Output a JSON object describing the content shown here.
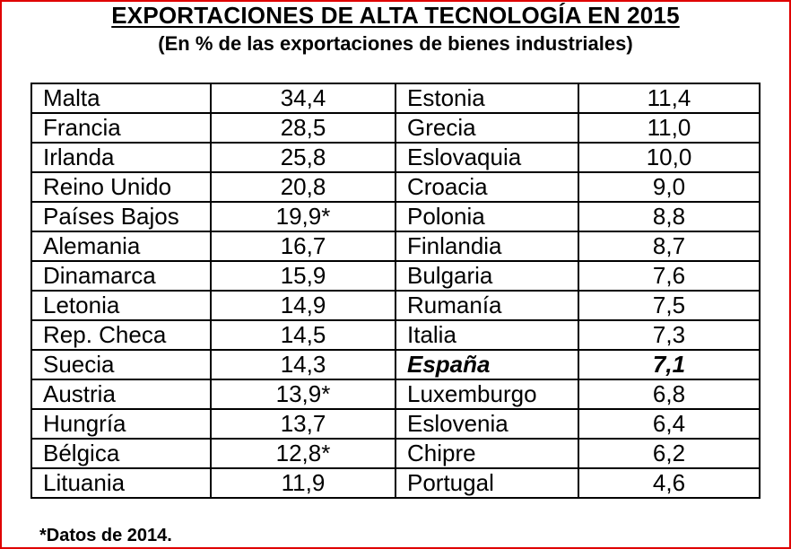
{
  "title": "EXPORTACIONES DE ALTA TECNOLOGÍA EN 2015",
  "subtitle": "(En % de las exportaciones de bienes industriales)",
  "rows": [
    {
      "left": {
        "country": "Malta",
        "value": "34,4"
      },
      "right": {
        "country": "Estonia",
        "value": "11,4"
      }
    },
    {
      "left": {
        "country": "Francia",
        "value": "28,5"
      },
      "right": {
        "country": "Grecia",
        "value": "11,0"
      }
    },
    {
      "left": {
        "country": "Irlanda",
        "value": "25,8"
      },
      "right": {
        "country": "Eslovaquia",
        "value": "10,0"
      }
    },
    {
      "left": {
        "country": "Reino Unido",
        "value": "20,8"
      },
      "right": {
        "country": "Croacia",
        "value": "9,0"
      }
    },
    {
      "left": {
        "country": "Países Bajos",
        "value": "19,9*"
      },
      "right": {
        "country": "Polonia",
        "value": "8,8"
      }
    },
    {
      "left": {
        "country": "Alemania",
        "value": "16,7"
      },
      "right": {
        "country": "Finlandia",
        "value": "8,7"
      }
    },
    {
      "left": {
        "country": "Dinamarca",
        "value": "15,9"
      },
      "right": {
        "country": "Bulgaria",
        "value": "7,6"
      }
    },
    {
      "left": {
        "country": "Letonia",
        "value": "14,9"
      },
      "right": {
        "country": "Rumanía",
        "value": "7,5"
      }
    },
    {
      "left": {
        "country": "Rep. Checa",
        "value": "14,5"
      },
      "right": {
        "country": "Italia",
        "value": "7,3"
      }
    },
    {
      "left": {
        "country": "Suecia",
        "value": "14,3"
      },
      "right": {
        "country": "España",
        "value": "7,1",
        "highlight": true
      }
    },
    {
      "left": {
        "country": "Austria",
        "value": "13,9*"
      },
      "right": {
        "country": "Luxemburgo",
        "value": "6,8"
      }
    },
    {
      "left": {
        "country": "Hungría",
        "value": "13,7"
      },
      "right": {
        "country": "Eslovenia",
        "value": "6,4"
      }
    },
    {
      "left": {
        "country": "Bélgica",
        "value": "12,8*"
      },
      "right": {
        "country": "Chipre",
        "value": "6,2"
      }
    },
    {
      "left": {
        "country": "Lituania",
        "value": "11,9"
      },
      "right": {
        "country": "Portugal",
        "value": "4,6"
      }
    }
  ],
  "footnote": "*Datos de 2014.",
  "colors": {
    "frame": "#e00000",
    "text": "#000000",
    "background": "#ffffff"
  }
}
